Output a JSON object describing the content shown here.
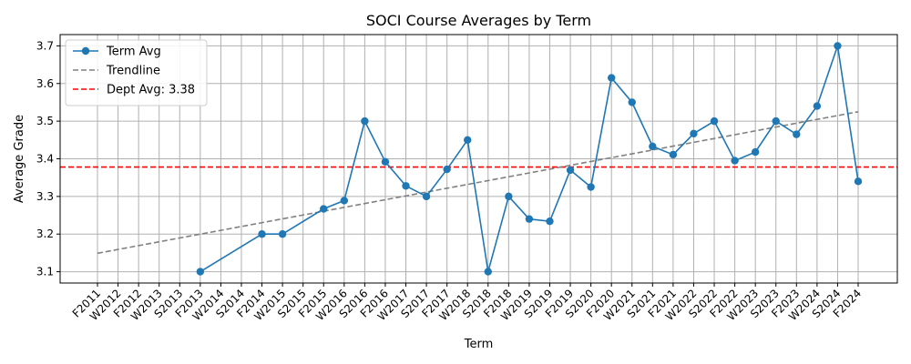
{
  "chart_data": {
    "type": "line",
    "title": "SOCI Course Averages by Term",
    "xlabel": "Term",
    "ylabel": "Average Grade",
    "ylim": [
      3.07,
      3.73
    ],
    "yticks": [
      3.1,
      3.2,
      3.3,
      3.4,
      3.5,
      3.6,
      3.7
    ],
    "ytick_labels": [
      "3.1",
      "3.2",
      "3.3",
      "3.4",
      "3.5",
      "3.6",
      "3.7"
    ],
    "grid": true,
    "legend_position": "top-left",
    "categories": [
      "F2011",
      "W2012",
      "F2012",
      "W2013",
      "S2013",
      "F2013",
      "W2014",
      "S2014",
      "F2014",
      "W2015",
      "S2015",
      "F2015",
      "W2016",
      "S2016",
      "F2016",
      "W2017",
      "S2017",
      "F2017",
      "W2018",
      "S2018",
      "F2018",
      "W2019",
      "S2019",
      "F2019",
      "S2020",
      "F2020",
      "W2021",
      "S2021",
      "F2021",
      "W2022",
      "S2022",
      "F2022",
      "W2023",
      "S2023",
      "F2023",
      "W2024",
      "S2024",
      "F2024"
    ],
    "series": [
      {
        "name": "Term Avg",
        "color": "#1f77b4",
        "style": "solid-marker",
        "values": [
          null,
          null,
          null,
          null,
          null,
          3.1,
          null,
          null,
          3.2,
          3.2,
          null,
          3.267,
          3.289,
          3.5,
          3.392,
          3.328,
          3.3,
          3.372,
          3.45,
          3.1,
          3.3,
          3.24,
          3.234,
          3.37,
          3.325,
          3.615,
          3.55,
          3.433,
          3.411,
          3.467,
          3.5,
          3.395,
          3.418,
          3.5,
          3.465,
          3.54,
          3.7,
          3.34
        ]
      },
      {
        "name": "Trendline",
        "color": "#808080",
        "style": "dashed",
        "x_start": "F2011",
        "x_end": "F2024",
        "y_start": 3.149,
        "y_end": 3.525
      },
      {
        "name": "Dept Avg: 3.38",
        "color": "#ff0000",
        "style": "dashed-horizontal",
        "value": 3.378
      }
    ]
  }
}
